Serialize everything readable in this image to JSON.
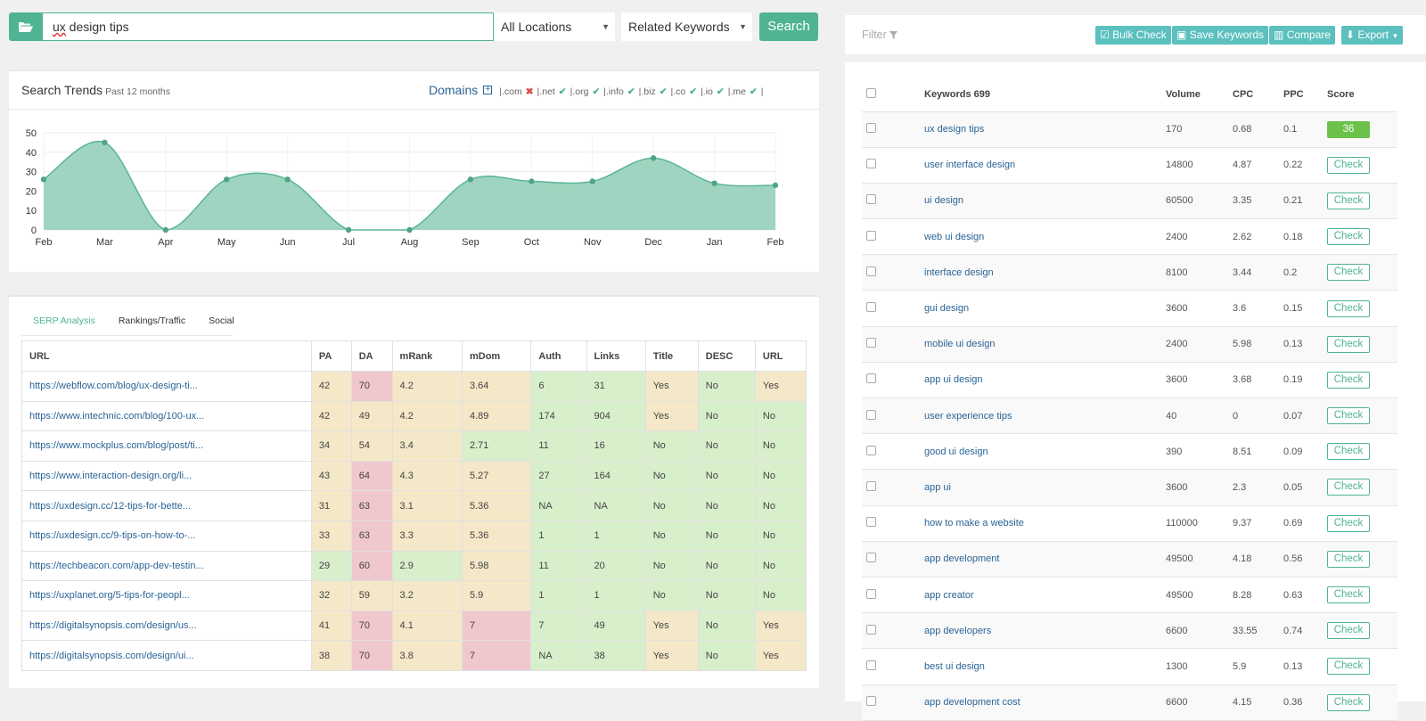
{
  "search": {
    "query_prefix": "ux",
    "query_rest": " design tips",
    "location": "All Locations",
    "mode": "Related Keywords",
    "button": "Search"
  },
  "trends": {
    "title": "Search Trends",
    "subtitle": "Past 12 months",
    "domains_label": "Domains",
    "domains": [
      {
        "name": "|.com",
        "status": "x"
      },
      {
        "name": "|.net",
        "status": "ok"
      },
      {
        "name": "|.org",
        "status": "ok"
      },
      {
        "name": "|.info",
        "status": "ok"
      },
      {
        "name": "|.biz",
        "status": "ok"
      },
      {
        "name": "|.co",
        "status": "ok"
      },
      {
        "name": "|.io",
        "status": "ok"
      },
      {
        "name": "|.me",
        "status": "ok"
      },
      {
        "name": "|",
        "status": ""
      }
    ]
  },
  "chart_data": {
    "type": "area",
    "categories": [
      "Feb",
      "Mar",
      "Apr",
      "May",
      "Jun",
      "Jul",
      "Aug",
      "Sep",
      "Oct",
      "Nov",
      "Dec",
      "Jan",
      "Feb"
    ],
    "values": [
      26,
      45,
      0,
      26,
      26,
      0,
      0,
      26,
      25,
      25,
      37,
      24,
      23
    ],
    "ylim": [
      0,
      50
    ],
    "yticks": [
      0,
      10,
      20,
      30,
      40,
      50
    ],
    "colors": {
      "fill": "#9fd5c0",
      "line": "#5bb595",
      "point": "#4fa585"
    }
  },
  "serp": {
    "tabs": [
      "SERP Analysis",
      "Rankings/Traffic",
      "Social"
    ],
    "columns": [
      "URL",
      "PA",
      "DA",
      "mRank",
      "mDom",
      "Auth",
      "Links",
      "Title",
      "DESC",
      "URL"
    ],
    "rows": [
      [
        "https://webflow.com/blog/ux-design-ti...",
        "42",
        "70",
        "4.2",
        "3.64",
        "6",
        "31",
        "Yes",
        "No",
        "Yes"
      ],
      [
        "https://www.intechnic.com/blog/100-ux...",
        "42",
        "49",
        "4.2",
        "4.89",
        "174",
        "904",
        "Yes",
        "No",
        "No"
      ],
      [
        "https://www.mockplus.com/blog/post/ti...",
        "34",
        "54",
        "3.4",
        "2.71",
        "11",
        "16",
        "No",
        "No",
        "No"
      ],
      [
        "https://www.interaction-design.org/li...",
        "43",
        "64",
        "4.3",
        "5.27",
        "27",
        "164",
        "No",
        "No",
        "No"
      ],
      [
        "https://uxdesign.cc/12-tips-for-bette...",
        "31",
        "63",
        "3.1",
        "5.36",
        "NA",
        "NA",
        "No",
        "No",
        "No"
      ],
      [
        "https://uxdesign.cc/9-tips-on-how-to-...",
        "33",
        "63",
        "3.3",
        "5.36",
        "1",
        "1",
        "No",
        "No",
        "No"
      ],
      [
        "https://techbeacon.com/app-dev-testin...",
        "29",
        "60",
        "2.9",
        "5.98",
        "11",
        "20",
        "No",
        "No",
        "No"
      ],
      [
        "https://uxplanet.org/5-tips-for-peopl...",
        "32",
        "59",
        "3.2",
        "5.9",
        "1",
        "1",
        "No",
        "No",
        "No"
      ],
      [
        "https://digitalsynopsis.com/design/us...",
        "41",
        "70",
        "4.1",
        "7",
        "7",
        "49",
        "Yes",
        "No",
        "Yes"
      ],
      [
        "https://digitalsynopsis.com/design/ui...",
        "38",
        "70",
        "3.8",
        "7",
        "NA",
        "38",
        "Yes",
        "No",
        "Yes"
      ]
    ],
    "cell_colors": [
      [
        "y",
        "r",
        "y",
        "y",
        "g",
        "g",
        "y",
        "g",
        "y"
      ],
      [
        "y",
        "y",
        "y",
        "y",
        "g",
        "g",
        "y",
        "g",
        "g"
      ],
      [
        "y",
        "y",
        "y",
        "g",
        "g",
        "g",
        "g",
        "g",
        "g"
      ],
      [
        "y",
        "r",
        "y",
        "y",
        "g",
        "g",
        "g",
        "g",
        "g"
      ],
      [
        "y",
        "r",
        "y",
        "y",
        "g",
        "g",
        "g",
        "g",
        "g"
      ],
      [
        "y",
        "r",
        "y",
        "y",
        "g",
        "g",
        "g",
        "g",
        "g"
      ],
      [
        "g",
        "r",
        "g",
        "y",
        "g",
        "g",
        "g",
        "g",
        "g"
      ],
      [
        "y",
        "y",
        "y",
        "y",
        "g",
        "g",
        "g",
        "g",
        "g"
      ],
      [
        "y",
        "r",
        "y",
        "r",
        "g",
        "g",
        "y",
        "g",
        "y"
      ],
      [
        "y",
        "r",
        "y",
        "r",
        "g",
        "g",
        "y",
        "g",
        "y"
      ]
    ]
  },
  "toolbar": {
    "filter": "Filter",
    "bulk_check": "Bulk Check",
    "save_keywords": "Save Keywords",
    "compare": "Compare",
    "export": "Export"
  },
  "keywords": {
    "headers": [
      "Keywords 699",
      "Volume",
      "CPC",
      "PPC",
      "Score"
    ],
    "check_label": "Check",
    "rows": [
      {
        "kw": "ux design tips",
        "volume": "170",
        "cpc": "0.68",
        "ppc": "0.1",
        "score": "36"
      },
      {
        "kw": "user interface design",
        "volume": "14800",
        "cpc": "4.87",
        "ppc": "0.22",
        "score": ""
      },
      {
        "kw": "ui design",
        "volume": "60500",
        "cpc": "3.35",
        "ppc": "0.21",
        "score": ""
      },
      {
        "kw": "web ui design",
        "volume": "2400",
        "cpc": "2.62",
        "ppc": "0.18",
        "score": ""
      },
      {
        "kw": "interface design",
        "volume": "8100",
        "cpc": "3.44",
        "ppc": "0.2",
        "score": ""
      },
      {
        "kw": "gui design",
        "volume": "3600",
        "cpc": "3.6",
        "ppc": "0.15",
        "score": ""
      },
      {
        "kw": "mobile ui design",
        "volume": "2400",
        "cpc": "5.98",
        "ppc": "0.13",
        "score": ""
      },
      {
        "kw": "app ui design",
        "volume": "3600",
        "cpc": "3.68",
        "ppc": "0.19",
        "score": ""
      },
      {
        "kw": "user experience tips",
        "volume": "40",
        "cpc": "0",
        "ppc": "0.07",
        "score": ""
      },
      {
        "kw": "good ui design",
        "volume": "390",
        "cpc": "8.51",
        "ppc": "0.09",
        "score": ""
      },
      {
        "kw": "app ui",
        "volume": "3600",
        "cpc": "2.3",
        "ppc": "0.05",
        "score": ""
      },
      {
        "kw": "how to make a website",
        "volume": "110000",
        "cpc": "9.37",
        "ppc": "0.69",
        "score": ""
      },
      {
        "kw": "app development",
        "volume": "49500",
        "cpc": "4.18",
        "ppc": "0.56",
        "score": ""
      },
      {
        "kw": "app creator",
        "volume": "49500",
        "cpc": "8.28",
        "ppc": "0.63",
        "score": ""
      },
      {
        "kw": "app developers",
        "volume": "6600",
        "cpc": "33.55",
        "ppc": "0.74",
        "score": ""
      },
      {
        "kw": "best ui design",
        "volume": "1300",
        "cpc": "5.9",
        "ppc": "0.13",
        "score": ""
      },
      {
        "kw": "app development cost",
        "volume": "6600",
        "cpc": "4.15",
        "ppc": "0.36",
        "score": ""
      }
    ]
  }
}
